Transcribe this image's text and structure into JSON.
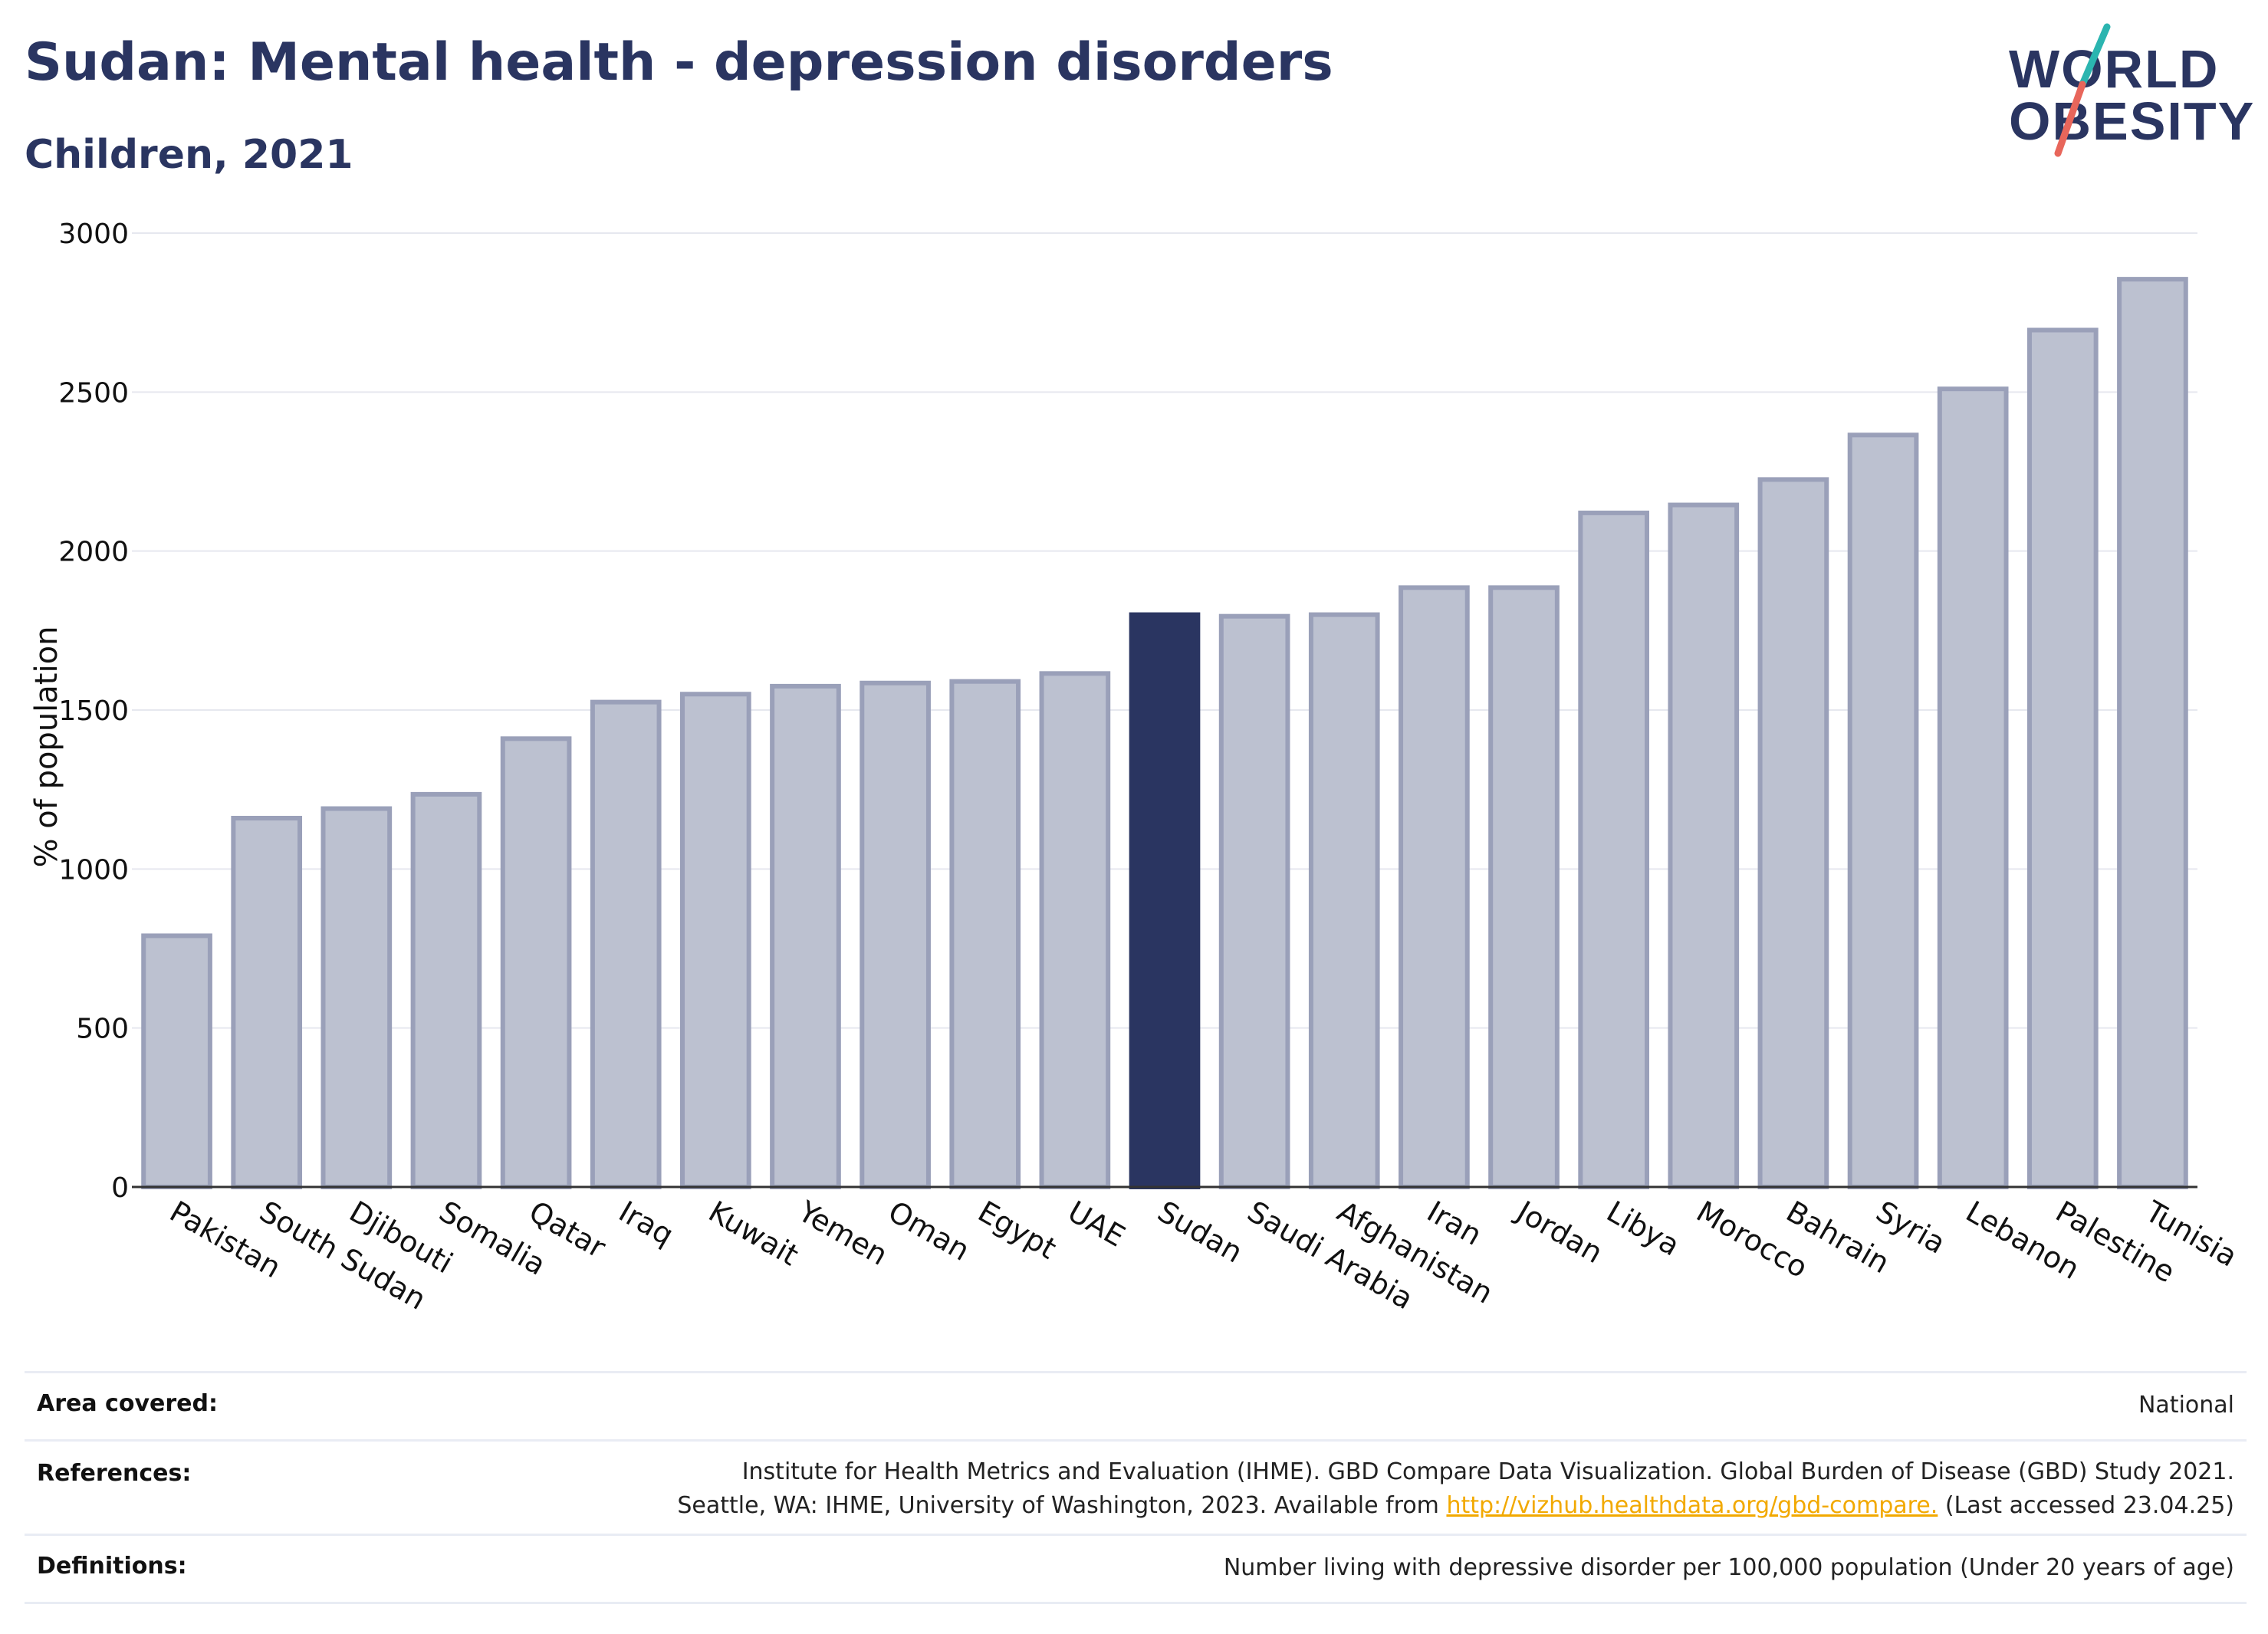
{
  "header": {
    "title": "Sudan: Mental health - depression disorders",
    "subtitle": "Children, 2021"
  },
  "logo": {
    "line1": "WORLD",
    "line2": "OBESITY",
    "colors": {
      "navy": "#2a3561",
      "teal": "#2bb5b0",
      "coral": "#e8665b"
    }
  },
  "chart_data": {
    "type": "bar",
    "ylabel": "% of population",
    "xlabel": "",
    "ylim": [
      0,
      3000
    ],
    "yticks": [
      0,
      500,
      1000,
      1500,
      2000,
      2500,
      3000
    ],
    "grid": true,
    "highlight": "Sudan",
    "colors": {
      "bar_fill": "#bcc1d0",
      "bar_stroke": "#9aa0b9",
      "highlight_fill": "#2a3561",
      "grid": "#e6e8ef",
      "axis": "#333333"
    },
    "categories": [
      "Pakistan",
      "South Sudan",
      "Djibouti",
      "Somalia",
      "Qatar",
      "Iraq",
      "Kuwait",
      "Yemen",
      "Oman",
      "Egypt",
      "UAE",
      "Sudan",
      "Saudi Arabia",
      "Afghanistan",
      "Iran",
      "Jordan",
      "Libya",
      "Morocco",
      "Bahrain",
      "Syria",
      "Lebanon",
      "Palestine",
      "Tunisia"
    ],
    "values": [
      790,
      1160,
      1190,
      1235,
      1410,
      1525,
      1550,
      1575,
      1585,
      1590,
      1615,
      1800,
      1795,
      1800,
      1885,
      1885,
      2120,
      2145,
      2225,
      2365,
      2510,
      2695,
      2855
    ]
  },
  "footer": {
    "area_label": "Area covered:",
    "area_value": "National",
    "references_label": "References:",
    "references_line1": "Institute for Health Metrics and Evaluation (IHME). GBD Compare Data Visualization. Global Burden of Disease (GBD) Study 2021.",
    "references_line2_prefix": "Seattle, WA: IHME, University of Washington, 2023. Available from ",
    "references_link": "http://vizhub.healthdata.org/gbd-compare.",
    "references_line2_suffix": " (Last accessed 23.04.25)",
    "definitions_label": "Definitions:",
    "definitions_value": "Number living with depressive disorder per 100,000 population (Under 20 years of age)"
  }
}
